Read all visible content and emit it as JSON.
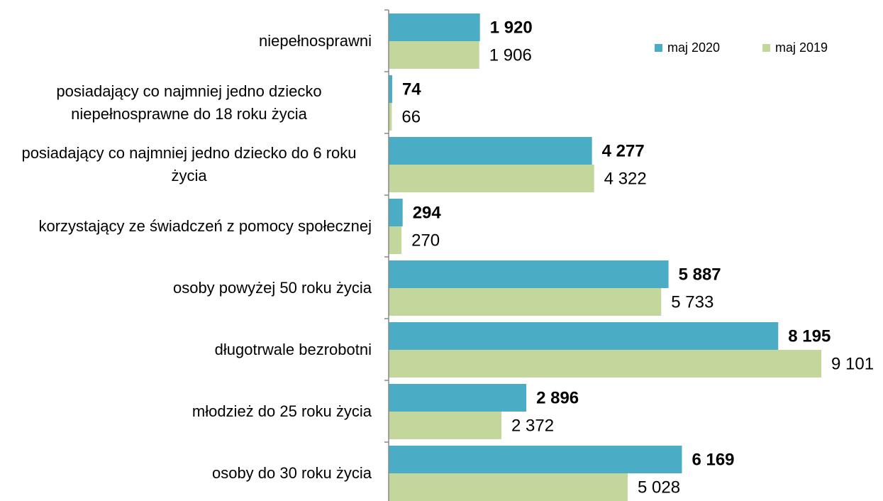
{
  "chart_data": {
    "type": "hbar",
    "categories": [
      "niepełnosprawni",
      "posiadający co najmniej jedno dziecko niepełnosprawne do 18 roku życia",
      "posiadający co najmniej jedno dziecko do 6 roku życia",
      "korzystający ze świadczeń z pomocy społecznej",
      "osoby powyżej 50 roku życia",
      "długotrwale bezrobotni",
      "młodzież do 25 roku życia",
      "osoby do 30 roku życia"
    ],
    "series": [
      {
        "name": "maj 2020",
        "color": "#4bacc6",
        "values": [
          1920,
          74,
          4277,
          294,
          5887,
          8195,
          2896,
          6169
        ],
        "value_labels": [
          "1 920",
          "74",
          "4 277",
          "294",
          "5 887",
          "8 195",
          "2 896",
          "6 169"
        ]
      },
      {
        "name": "maj 2019",
        "color": "#c3d69b",
        "values": [
          1906,
          66,
          4322,
          270,
          5733,
          9101,
          2372,
          5028
        ],
        "value_labels": [
          "1 906",
          "66",
          "4 322",
          "270",
          "5 733",
          "9 101",
          "2 372",
          "5 028"
        ]
      }
    ],
    "legend": "top-right"
  }
}
